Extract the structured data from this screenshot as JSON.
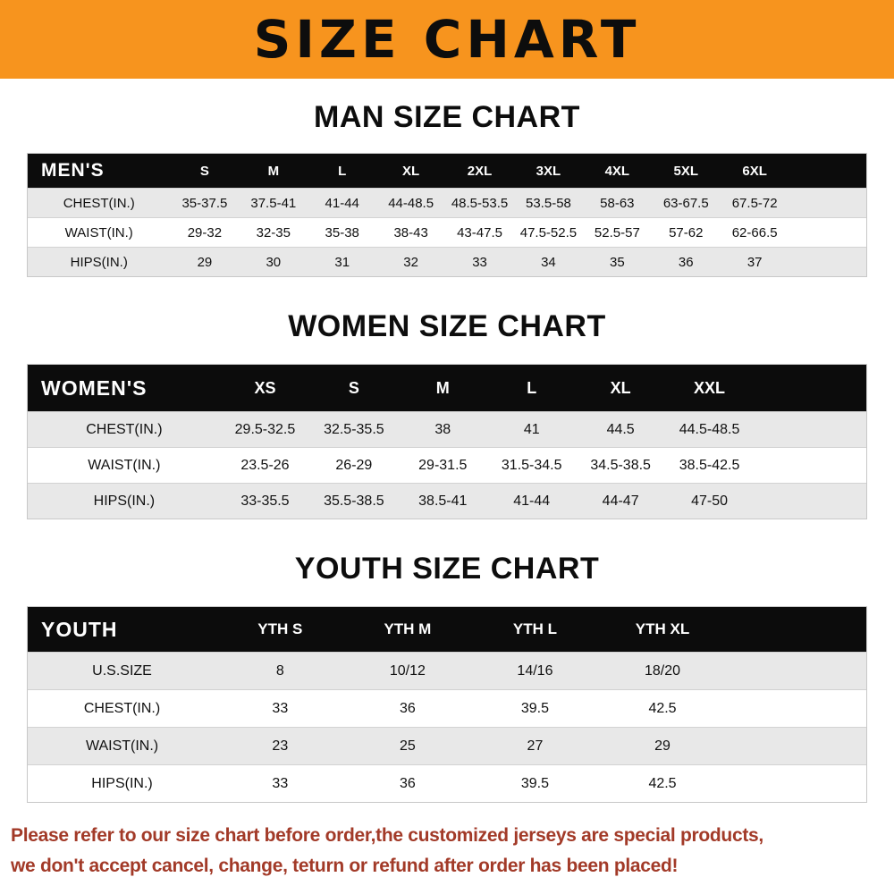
{
  "banner": {
    "title": "SIZE CHART"
  },
  "colors": {
    "banner_bg": "#F7941E",
    "table_header_bg": "#0C0C0C",
    "stripe_row_bg": "#E8E8E8",
    "notice_text": "#A23A28"
  },
  "sections": [
    {
      "heading": "MAN SIZE CHART",
      "table": {
        "header_label": "MEN'S",
        "columns": [
          "S",
          "M",
          "L",
          "XL",
          "2XL",
          "3XL",
          "4XL",
          "5XL",
          "6XL"
        ],
        "rows": [
          {
            "label": "CHEST(IN.)",
            "values": [
              "35-37.5",
              "37.5-41",
              "41-44",
              "44-48.5",
              "48.5-53.5",
              "53.5-58",
              "58-63",
              "63-67.5",
              "67.5-72"
            ]
          },
          {
            "label": "WAIST(IN.)",
            "values": [
              "29-32",
              "32-35",
              "35-38",
              "38-43",
              "43-47.5",
              "47.5-52.5",
              "52.5-57",
              "57-62",
              "62-66.5"
            ]
          },
          {
            "label": "HIPS(IN.)",
            "values": [
              "29",
              "30",
              "31",
              "32",
              "33",
              "34",
              "35",
              "36",
              "37"
            ]
          }
        ]
      }
    },
    {
      "heading": "WOMEN SIZE CHART",
      "table": {
        "header_label": "WOMEN'S",
        "columns": [
          "XS",
          "S",
          "M",
          "L",
          "XL",
          "XXL"
        ],
        "rows": [
          {
            "label": "CHEST(IN.)",
            "values": [
              "29.5-32.5",
              "32.5-35.5",
              "38",
              "41",
              "44.5",
              "44.5-48.5"
            ]
          },
          {
            "label": "WAIST(IN.)",
            "values": [
              "23.5-26",
              "26-29",
              "29-31.5",
              "31.5-34.5",
              "34.5-38.5",
              "38.5-42.5"
            ]
          },
          {
            "label": "HIPS(IN.)",
            "values": [
              "33-35.5",
              "35.5-38.5",
              "38.5-41",
              "41-44",
              "44-47",
              "47-50"
            ]
          }
        ]
      }
    },
    {
      "heading": "YOUTH SIZE CHART",
      "table": {
        "header_label": "YOUTH",
        "columns": [
          "YTH S",
          "YTH M",
          "YTH L",
          "YTH XL"
        ],
        "rows": [
          {
            "label": "U.S.SIZE",
            "values": [
              "8",
              "10/12",
              "14/16",
              "18/20"
            ]
          },
          {
            "label": "CHEST(IN.)",
            "values": [
              "33",
              "36",
              "39.5",
              "42.5"
            ]
          },
          {
            "label": "WAIST(IN.)",
            "values": [
              "23",
              "25",
              "27",
              "29"
            ]
          },
          {
            "label": "HIPS(IN.)",
            "values": [
              "33",
              "36",
              "39.5",
              "42.5"
            ]
          }
        ]
      }
    }
  ],
  "footer": {
    "lines": [
      "Please refer to our size chart before order,the customized jerseys are special products,",
      "we don't accept cancel, change, teturn or refund after order has been placed!"
    ]
  }
}
